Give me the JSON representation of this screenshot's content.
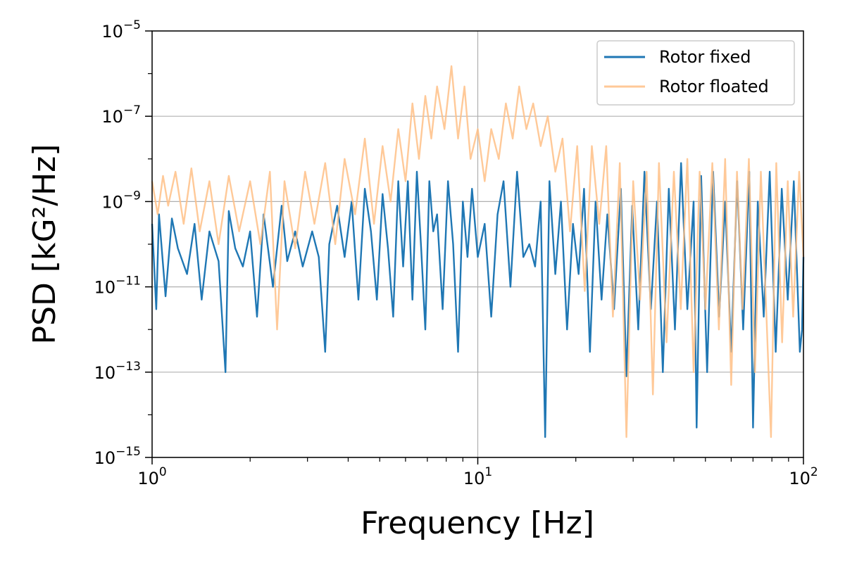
{
  "chart_data": {
    "type": "line",
    "x_scale": "log",
    "y_scale": "log",
    "xlabel": "Frequency [Hz]",
    "ylabel": "PSD [kG²/Hz]",
    "xlim": [
      1,
      100
    ],
    "ylim": [
      1e-15,
      1e-05
    ],
    "grid": true,
    "legend_location": "top-right",
    "x_ticks": [
      {
        "value": 1,
        "base": "10",
        "exp": "0"
      },
      {
        "value": 10,
        "base": "10",
        "exp": "1"
      },
      {
        "value": 100,
        "base": "10",
        "exp": "2"
      }
    ],
    "y_ticks": [
      {
        "value": 1e-05,
        "base": "10",
        "exp": "−5"
      },
      {
        "value": 1e-07,
        "base": "10",
        "exp": "−7"
      },
      {
        "value": 1e-09,
        "base": "10",
        "exp": "−9"
      },
      {
        "value": 1e-11,
        "base": "10",
        "exp": "−11"
      },
      {
        "value": 1e-13,
        "base": "10",
        "exp": "−13"
      },
      {
        "value": 1e-15,
        "base": "10",
        "exp": "−15"
      }
    ],
    "series": [
      {
        "name": "Rotor fixed",
        "color": "#1f77b4",
        "opacity": 1,
        "points": [
          [
            1.0,
            3e-10
          ],
          [
            1.03,
            3e-12
          ],
          [
            1.05,
            5e-10
          ],
          [
            1.1,
            6e-12
          ],
          [
            1.15,
            4e-10
          ],
          [
            1.2,
            8e-11
          ],
          [
            1.28,
            2e-11
          ],
          [
            1.35,
            3e-10
          ],
          [
            1.42,
            5e-12
          ],
          [
            1.5,
            2e-10
          ],
          [
            1.6,
            4e-11
          ],
          [
            1.68,
            1e-13
          ],
          [
            1.72,
            6e-10
          ],
          [
            1.8,
            8e-11
          ],
          [
            1.9,
            3e-11
          ],
          [
            2.0,
            2e-10
          ],
          [
            2.1,
            2e-12
          ],
          [
            2.2,
            5e-10
          ],
          [
            2.35,
            1e-11
          ],
          [
            2.5,
            8e-10
          ],
          [
            2.6,
            4e-11
          ],
          [
            2.75,
            2e-10
          ],
          [
            2.9,
            3e-11
          ],
          [
            3.1,
            2e-10
          ],
          [
            3.25,
            5e-11
          ],
          [
            3.4,
            3e-13
          ],
          [
            3.5,
            1e-10
          ],
          [
            3.7,
            8e-10
          ],
          [
            3.9,
            5e-11
          ],
          [
            4.1,
            1e-09
          ],
          [
            4.3,
            5e-12
          ],
          [
            4.5,
            2e-09
          ],
          [
            4.7,
            2e-10
          ],
          [
            4.9,
            5e-12
          ],
          [
            5.1,
            1.5e-09
          ],
          [
            5.3,
            8e-11
          ],
          [
            5.5,
            2e-12
          ],
          [
            5.7,
            3e-09
          ],
          [
            5.9,
            3e-11
          ],
          [
            6.1,
            3e-09
          ],
          [
            6.3,
            5e-12
          ],
          [
            6.5,
            5e-09
          ],
          [
            6.7,
            8e-11
          ],
          [
            6.9,
            1e-12
          ],
          [
            7.1,
            3e-09
          ],
          [
            7.3,
            2e-10
          ],
          [
            7.5,
            5e-10
          ],
          [
            7.8,
            3e-12
          ],
          [
            8.1,
            3e-09
          ],
          [
            8.4,
            1e-10
          ],
          [
            8.7,
            3e-13
          ],
          [
            9.0,
            1e-09
          ],
          [
            9.3,
            5e-11
          ],
          [
            9.6,
            2e-09
          ],
          [
            10.0,
            5e-11
          ],
          [
            10.5,
            3e-10
          ],
          [
            11.0,
            2e-12
          ],
          [
            11.5,
            5e-10
          ],
          [
            12.0,
            3e-09
          ],
          [
            12.6,
            1e-11
          ],
          [
            13.2,
            5e-09
          ],
          [
            13.8,
            5e-11
          ],
          [
            14.4,
            1e-10
          ],
          [
            15.0,
            3e-11
          ],
          [
            15.6,
            1e-09
          ],
          [
            16.1,
            3e-15
          ],
          [
            16.6,
            3e-09
          ],
          [
            17.3,
            2e-11
          ],
          [
            18.0,
            1e-09
          ],
          [
            18.8,
            1e-12
          ],
          [
            19.6,
            3e-10
          ],
          [
            20.4,
            2e-11
          ],
          [
            21.2,
            2e-09
          ],
          [
            22.1,
            3e-13
          ],
          [
            23.0,
            1e-09
          ],
          [
            24.0,
            5e-12
          ],
          [
            25.0,
            5e-10
          ],
          [
            26.2,
            3e-12
          ],
          [
            27.5,
            2e-09
          ],
          [
            28.6,
            8e-14
          ],
          [
            29.8,
            8e-10
          ],
          [
            31.1,
            1e-12
          ],
          [
            32.5,
            5e-09
          ],
          [
            34.0,
            3e-12
          ],
          [
            35.5,
            1e-09
          ],
          [
            37.0,
            1e-13
          ],
          [
            38.6,
            2e-09
          ],
          [
            40.3,
            1e-12
          ],
          [
            42.1,
            8e-09
          ],
          [
            44.0,
            3e-12
          ],
          [
            46.0,
            1e-09
          ],
          [
            47.0,
            5e-15
          ],
          [
            48.5,
            4e-09
          ],
          [
            50.6,
            1e-13
          ],
          [
            52.8,
            5e-09
          ],
          [
            55.1,
            2e-12
          ],
          [
            57.5,
            1e-09
          ],
          [
            60.0,
            3e-13
          ],
          [
            62.6,
            3e-09
          ],
          [
            65.3,
            1e-12
          ],
          [
            68.2,
            5e-09
          ],
          [
            70.0,
            5e-15
          ],
          [
            72.4,
            1e-09
          ],
          [
            75.5,
            2e-12
          ],
          [
            78.8,
            5e-09
          ],
          [
            82.2,
            3e-13
          ],
          [
            85.8,
            2e-09
          ],
          [
            89.5,
            5e-12
          ],
          [
            93.4,
            3e-09
          ],
          [
            97.5,
            3e-13
          ],
          [
            99.0,
            1e-12
          ],
          [
            100.0,
            5e-11
          ]
        ]
      },
      {
        "name": "Rotor floated",
        "color": "#ffbf86",
        "opacity": 0.85,
        "points": [
          [
            1.0,
            3e-09
          ],
          [
            1.04,
            5e-10
          ],
          [
            1.08,
            4e-09
          ],
          [
            1.12,
            8e-10
          ],
          [
            1.18,
            5e-09
          ],
          [
            1.25,
            3e-10
          ],
          [
            1.32,
            6e-09
          ],
          [
            1.4,
            2e-10
          ],
          [
            1.5,
            3e-09
          ],
          [
            1.6,
            1e-10
          ],
          [
            1.72,
            4e-09
          ],
          [
            1.85,
            2e-10
          ],
          [
            2.0,
            3e-09
          ],
          [
            2.15,
            1e-10
          ],
          [
            2.3,
            5e-09
          ],
          [
            2.42,
            1e-12
          ],
          [
            2.55,
            3e-09
          ],
          [
            2.75,
            8e-11
          ],
          [
            2.95,
            5e-09
          ],
          [
            3.15,
            3e-10
          ],
          [
            3.4,
            8e-09
          ],
          [
            3.65,
            1e-10
          ],
          [
            3.9,
            1e-08
          ],
          [
            4.2,
            5e-10
          ],
          [
            4.5,
            3e-08
          ],
          [
            4.8,
            3e-10
          ],
          [
            5.1,
            2e-08
          ],
          [
            5.4,
            1e-09
          ],
          [
            5.7,
            5e-08
          ],
          [
            6.0,
            3e-09
          ],
          [
            6.3,
            2e-07
          ],
          [
            6.6,
            1e-08
          ],
          [
            6.9,
            3e-07
          ],
          [
            7.2,
            3e-08
          ],
          [
            7.5,
            5e-07
          ],
          [
            7.9,
            5e-08
          ],
          [
            8.3,
            1.5e-06
          ],
          [
            8.7,
            3e-08
          ],
          [
            9.1,
            5e-07
          ],
          [
            9.5,
            1e-08
          ],
          [
            10.0,
            5e-08
          ],
          [
            10.5,
            3e-09
          ],
          [
            11.0,
            5e-08
          ],
          [
            11.6,
            1e-08
          ],
          [
            12.2,
            2e-07
          ],
          [
            12.8,
            3e-08
          ],
          [
            13.4,
            5e-07
          ],
          [
            14.1,
            5e-08
          ],
          [
            14.8,
            2e-07
          ],
          [
            15.6,
            2e-08
          ],
          [
            16.4,
            1e-07
          ],
          [
            17.3,
            5e-09
          ],
          [
            18.2,
            3e-08
          ],
          [
            19.2,
            2e-10
          ],
          [
            20.2,
            2e-08
          ],
          [
            21.3,
            8e-12
          ],
          [
            22.4,
            2e-08
          ],
          [
            23.6,
            3e-10
          ],
          [
            24.8,
            2e-08
          ],
          [
            26.0,
            2e-12
          ],
          [
            27.3,
            8e-09
          ],
          [
            28.6,
            3e-15
          ],
          [
            30.0,
            3e-09
          ],
          [
            31.5,
            5e-12
          ],
          [
            33.0,
            5e-09
          ],
          [
            34.5,
            3e-14
          ],
          [
            36.0,
            8e-09
          ],
          [
            38.0,
            5e-13
          ],
          [
            40.0,
            5e-09
          ],
          [
            42.0,
            3e-12
          ],
          [
            44.0,
            1e-08
          ],
          [
            46.0,
            1e-13
          ],
          [
            48.0,
            5e-09
          ],
          [
            50.0,
            3e-12
          ],
          [
            52.5,
            8e-09
          ],
          [
            55.0,
            1e-12
          ],
          [
            57.5,
            1e-08
          ],
          [
            60.0,
            5e-14
          ],
          [
            62.5,
            5e-09
          ],
          [
            65.0,
            3e-12
          ],
          [
            68.0,
            1e-08
          ],
          [
            71.0,
            1e-13
          ],
          [
            74.0,
            5e-09
          ],
          [
            77.0,
            2e-12
          ],
          [
            79.5,
            3e-15
          ],
          [
            82.5,
            8e-09
          ],
          [
            86.0,
            5e-13
          ],
          [
            89.5,
            3e-09
          ],
          [
            93.0,
            2e-12
          ],
          [
            97.0,
            5e-09
          ],
          [
            100.0,
            5e-11
          ]
        ]
      }
    ]
  }
}
